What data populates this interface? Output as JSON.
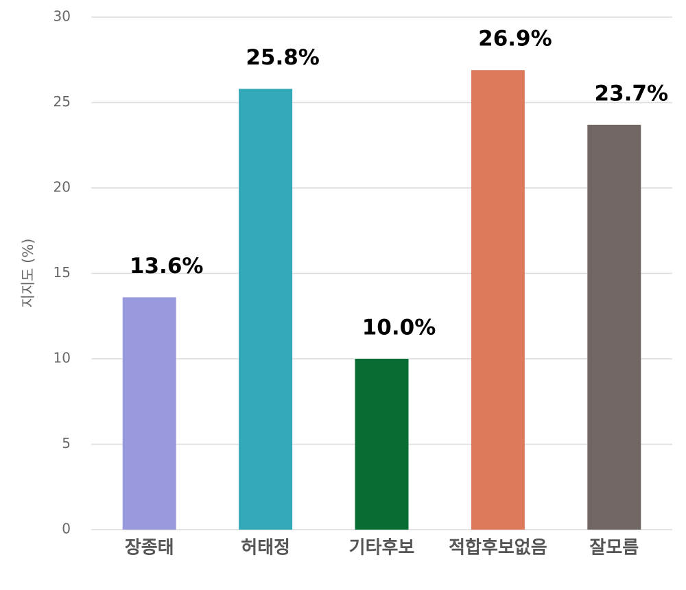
{
  "chart_data": {
    "type": "bar",
    "ylabel": "지지도 (%)",
    "categories": [
      "장종태",
      "허태정",
      "기타후보",
      "적합후보없음",
      "잘모름"
    ],
    "values": [
      13.6,
      25.8,
      10.0,
      26.9,
      23.7
    ],
    "value_labels": [
      "13.6%",
      "25.8%",
      "10.0%",
      "26.9%",
      "23.7%"
    ],
    "colors": [
      "#9999dd",
      "#31a9b8",
      "#086d33",
      "#dd7a5c",
      "#706664"
    ],
    "ylim": [
      0,
      30
    ],
    "yticks": [
      0,
      5,
      10,
      15,
      20,
      25,
      30
    ],
    "grid": true
  }
}
